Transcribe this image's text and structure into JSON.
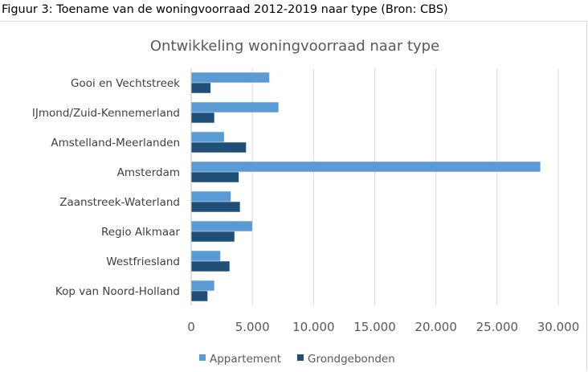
{
  "figure_caption": "Figuur 3: Toename van de woningvoorraad 2012-2019 naar type (Bron: CBS)",
  "colors": {
    "appartement": "#5b9bd5",
    "grondgebonden": "#1f4e79",
    "grid": "#d9d9d9",
    "text": "#595959"
  },
  "chart_data": {
    "type": "bar",
    "orientation": "horizontal",
    "title": "Ontwikkeling woningvoorraad naar type",
    "xlabel": "",
    "ylabel": "",
    "xlim": [
      0,
      30000
    ],
    "grid": true,
    "legend_position": "bottom",
    "categories": [
      "Gooi en Vechtstreek",
      "IJmond/Zuid-Kennemerland",
      "Amstelland-Meerlanden",
      "Amsterdam",
      "Zaanstreek-Waterland",
      "Regio Alkmaar",
      "Westfriesland",
      "Kop van Noord-Holland"
    ],
    "series": [
      {
        "name": "Appartement",
        "values": [
          6350,
          7100,
          2650,
          28500,
          3200,
          4950,
          2350,
          1850
        ]
      },
      {
        "name": "Grondgebonden",
        "values": [
          1550,
          1850,
          4450,
          3850,
          3950,
          3500,
          3100,
          1300
        ]
      }
    ],
    "x_ticks": [
      0,
      5000,
      10000,
      15000,
      20000,
      25000,
      30000
    ],
    "x_tick_labels": [
      "0",
      "5.000",
      "10.000",
      "15.000",
      "20.000",
      "25.000",
      "30.000"
    ]
  }
}
